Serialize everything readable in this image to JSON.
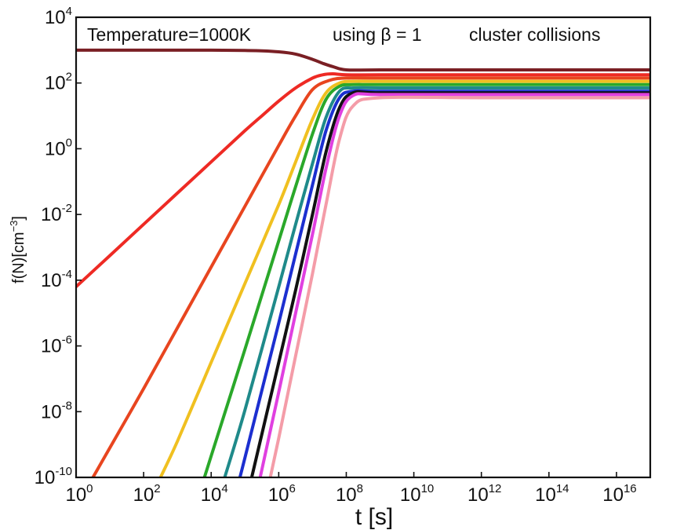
{
  "chart_data": {
    "type": "line",
    "title": "",
    "xlabel": "t [s]",
    "ylabel": "f(N)[cm⁻³]",
    "ylabel_parts": {
      "main": "f(N)[cm",
      "sup": "−3",
      "close": "]"
    },
    "x_scale": "log",
    "y_scale": "log",
    "xlim": [
      1,
      1e+17
    ],
    "ylim": [
      1e-10,
      10000.0
    ],
    "grid": false,
    "legend": "none",
    "annotations": [
      {
        "text": "Temperature=1000K",
        "position": "top-left"
      },
      {
        "text": "using β = 1",
        "position": "top-center"
      },
      {
        "text": "cluster collisions",
        "position": "top-right"
      }
    ],
    "x_ticks": [
      {
        "base": "10",
        "exp": "0",
        "value": 1
      },
      {
        "base": "10",
        "exp": "2",
        "value": 100
      },
      {
        "base": "10",
        "exp": "4",
        "value": 10000
      },
      {
        "base": "10",
        "exp": "6",
        "value": 1000000
      },
      {
        "base": "10",
        "exp": "8",
        "value": 100000000
      },
      {
        "base": "10",
        "exp": "10",
        "value": 10000000000
      },
      {
        "base": "10",
        "exp": "12",
        "value": 1000000000000
      },
      {
        "base": "10",
        "exp": "14",
        "value": 100000000000000
      },
      {
        "base": "10",
        "exp": "16",
        "value": 10000000000000000
      }
    ],
    "y_ticks": [
      {
        "base": "10",
        "exp": "-10",
        "value": 1e-10
      },
      {
        "base": "10",
        "exp": "-8",
        "value": 1e-08
      },
      {
        "base": "10",
        "exp": "-6",
        "value": 1e-06
      },
      {
        "base": "10",
        "exp": "-4",
        "value": 0.0001
      },
      {
        "base": "10",
        "exp": "-2",
        "value": 0.01
      },
      {
        "base": "10",
        "exp": "0",
        "value": 1
      },
      {
        "base": "10",
        "exp": "2",
        "value": 100
      },
      {
        "base": "10",
        "exp": "4",
        "value": 10000
      }
    ],
    "series": [
      {
        "color": "#7a1f24",
        "log_x": [
          0,
          1,
          2,
          3,
          4,
          5,
          5.5,
          6,
          6.5,
          7,
          7.3,
          7.6,
          8,
          9,
          12,
          17.2
        ],
        "log_y": [
          3,
          3,
          3,
          3,
          3,
          2.99,
          2.98,
          2.95,
          2.88,
          2.72,
          2.6,
          2.5,
          2.4,
          2.4,
          2.4,
          2.4
        ]
      },
      {
        "color": "#ee2a24",
        "log_x": [
          0,
          1,
          2,
          3,
          4,
          5,
          5.5,
          6,
          6.5,
          7,
          7.3,
          7.6,
          8,
          9,
          12,
          17.2
        ],
        "log_y": [
          -4.2,
          -3.25,
          -2.3,
          -1.35,
          -0.4,
          0.55,
          1.0,
          1.45,
          1.85,
          2.15,
          2.25,
          2.28,
          2.25,
          2.25,
          2.25,
          2.25
        ]
      },
      {
        "color": "#e8451f",
        "log_x": [
          0.5,
          1,
          2,
          3,
          4,
          5,
          6,
          6.5,
          7,
          7.5,
          8,
          9,
          12,
          17.2
        ],
        "log_y": [
          -10,
          -9.1,
          -7.3,
          -5.45,
          -3.6,
          -1.75,
          0.1,
          1.0,
          1.8,
          2.08,
          2.15,
          2.15,
          2.15,
          2.15
        ]
      },
      {
        "color": "#f0c020",
        "log_x": [
          2.5,
          3,
          4,
          5,
          6,
          6.5,
          7,
          7.4,
          7.8,
          8.2,
          9,
          12,
          17.2
        ],
        "log_y": [
          -10,
          -8.9,
          -6.5,
          -4.1,
          -1.7,
          -0.4,
          0.9,
          1.7,
          2.0,
          2.05,
          2.05,
          2.05,
          2.05
        ]
      },
      {
        "color": "#2aa82a",
        "log_x": [
          3.8,
          4,
          5,
          6,
          6.5,
          7,
          7.4,
          7.8,
          8.2,
          9,
          12,
          17.2
        ],
        "log_y": [
          -10,
          -9.35,
          -6.1,
          -2.8,
          -1.15,
          0.45,
          1.5,
          1.9,
          1.95,
          1.95,
          1.95,
          1.95
        ]
      },
      {
        "color": "#1f8a8a",
        "log_x": [
          4.4,
          5,
          6,
          6.5,
          7,
          7.4,
          7.8,
          8.2,
          9,
          12,
          17.2
        ],
        "log_y": [
          -10,
          -7.95,
          -4.2,
          -2.3,
          -0.45,
          0.95,
          1.75,
          1.85,
          1.85,
          1.85,
          1.85
        ]
      },
      {
        "color": "#1c2fd0",
        "log_x": [
          4.85,
          5,
          6,
          6.5,
          7,
          7.4,
          7.8,
          8.2,
          9,
          12,
          17.2
        ],
        "log_y": [
          -10,
          -9.4,
          -5.3,
          -3.2,
          -1.1,
          0.55,
          1.55,
          1.75,
          1.75,
          1.75,
          1.75
        ]
      },
      {
        "color": "#111111",
        "log_x": [
          5.2,
          6,
          6.5,
          7,
          7.4,
          7.8,
          8.2,
          9,
          12,
          17.2
        ],
        "log_y": [
          -10,
          -6.5,
          -4.3,
          -2.0,
          -0.1,
          1.25,
          1.7,
          1.7,
          1.7,
          1.7
        ]
      },
      {
        "color": "#e040e0",
        "log_x": [
          5.45,
          6,
          6.5,
          7,
          7.4,
          7.8,
          8.2,
          9,
          12,
          17.2
        ],
        "log_y": [
          -10,
          -7.4,
          -5.0,
          -2.6,
          -0.6,
          1.0,
          1.62,
          1.65,
          1.65,
          1.65
        ]
      },
      {
        "color": "#f49ca8",
        "log_x": [
          5.75,
          6,
          6.5,
          7,
          7.4,
          7.8,
          8.2,
          9,
          12,
          17.2
        ],
        "log_y": [
          -10,
          -8.8,
          -6.3,
          -3.8,
          -1.7,
          0.3,
          1.3,
          1.55,
          1.55,
          1.55
        ]
      }
    ]
  }
}
